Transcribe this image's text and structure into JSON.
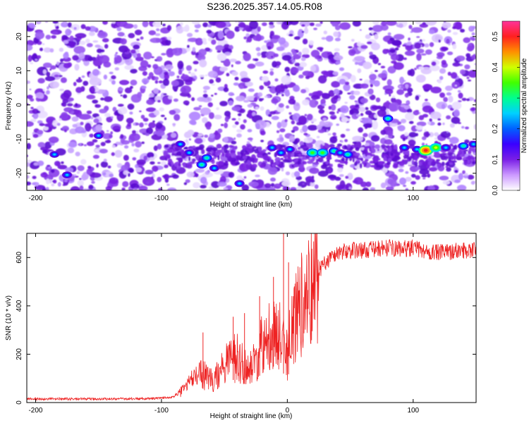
{
  "title": "S236.2025.357.14.05.R08",
  "chart_data": [
    {
      "type": "heatmap",
      "title": "S236.2025.357.14.05.R08",
      "xlabel": "Height of straight line (km)",
      "ylabel": "Frequency (Hz)",
      "xlim": [
        -207,
        150
      ],
      "ylim": [
        -25,
        24.5
      ],
      "x_ticks": [
        -200,
        -100,
        0,
        100
      ],
      "y_ticks": [
        -20,
        -10,
        0,
        10,
        20
      ],
      "colorbar": {
        "label": "Normalized spectral amplitude",
        "range": [
          0,
          0.55
        ],
        "ticks": [
          "0.0",
          "0.1",
          "0.2",
          "0.3",
          "0.4",
          "0.5"
        ],
        "colors": [
          "#ffffff",
          "#cc99ff",
          "#7a1fe6",
          "#3a00ff",
          "#0060ff",
          "#00d0ff",
          "#00ff90",
          "#40ff00",
          "#d0ff00",
          "#ff9000",
          "#ff2020",
          "#ff3399"
        ]
      },
      "hotspots": [
        {
          "x": -85,
          "y": -11.5,
          "value": 0.14
        },
        {
          "x": -78,
          "y": -14,
          "value": 0.12
        },
        {
          "x": -68,
          "y": -17.5,
          "value": 0.17
        },
        {
          "x": -64,
          "y": -15.5,
          "value": 0.15
        },
        {
          "x": -58,
          "y": -18.5,
          "value": 0.12
        },
        {
          "x": -38,
          "y": -23,
          "value": 0.13
        },
        {
          "x": -12,
          "y": -12.5,
          "value": 0.13
        },
        {
          "x": -5,
          "y": -14,
          "value": 0.14
        },
        {
          "x": 2,
          "y": -13,
          "value": 0.12
        },
        {
          "x": 20,
          "y": -14,
          "value": 0.28
        },
        {
          "x": 28,
          "y": -14,
          "value": 0.26
        },
        {
          "x": 37,
          "y": -13.5,
          "value": 0.16
        },
        {
          "x": 42,
          "y": -14,
          "value": 0.12
        },
        {
          "x": 48,
          "y": -14.5,
          "value": 0.15
        },
        {
          "x": 80,
          "y": -4,
          "value": 0.15
        },
        {
          "x": 93,
          "y": -12.5,
          "value": 0.14
        },
        {
          "x": 103,
          "y": -13,
          "value": 0.13
        },
        {
          "x": 110,
          "y": -13.3,
          "value": 0.5
        },
        {
          "x": 118,
          "y": -12.5,
          "value": 0.32
        },
        {
          "x": 126,
          "y": -12.5,
          "value": 0.14
        },
        {
          "x": 140,
          "y": -12,
          "value": 0.15
        },
        {
          "x": 148,
          "y": -11.5,
          "value": 0.13
        },
        {
          "x": -175,
          "y": -20.5,
          "value": 0.12
        },
        {
          "x": -185,
          "y": -14.5,
          "value": 0.1
        },
        {
          "x": -150,
          "y": -9,
          "value": 0.1
        }
      ]
    },
    {
      "type": "line",
      "xlabel": "Height of straight line (km)",
      "ylabel": "SNR (10 * v/v)",
      "xlim": [
        -207,
        150
      ],
      "ylim": [
        0,
        700
      ],
      "x_ticks": [
        -200,
        -100,
        0,
        100
      ],
      "y_ticks": [
        0,
        200,
        400,
        600
      ],
      "color": "#ee2222",
      "series": [
        {
          "name": "SNR",
          "x": [
            -207,
            -150,
            -110,
            -100,
            -90,
            -85,
            -80,
            -75,
            -70,
            -65,
            -60,
            -55,
            -50,
            -45,
            -40,
            -35,
            -30,
            -25,
            -20,
            -15,
            -10,
            -5,
            0,
            5,
            10,
            15,
            20,
            25,
            30,
            35,
            40,
            50,
            60,
            70,
            80,
            90,
            100,
            110,
            120,
            130,
            140,
            150
          ],
          "y": [
            15,
            15,
            16,
            18,
            25,
            45,
            75,
            105,
            120,
            110,
            90,
            115,
            155,
            185,
            190,
            160,
            130,
            180,
            250,
            290,
            300,
            260,
            210,
            330,
            390,
            440,
            500,
            545,
            580,
            600,
            620,
            630,
            630,
            635,
            640,
            635,
            640,
            625,
            620,
            625,
            630,
            635
          ]
        }
      ],
      "peaks": [
        {
          "x": -67,
          "y": 290
        },
        {
          "x": -43,
          "y": 355
        },
        {
          "x": -34,
          "y": 370
        },
        {
          "x": -22,
          "y": 440
        },
        {
          "x": -11,
          "y": 520
        },
        {
          "x": -3,
          "y": 700
        },
        {
          "x": 1,
          "y": 580
        }
      ]
    }
  ]
}
